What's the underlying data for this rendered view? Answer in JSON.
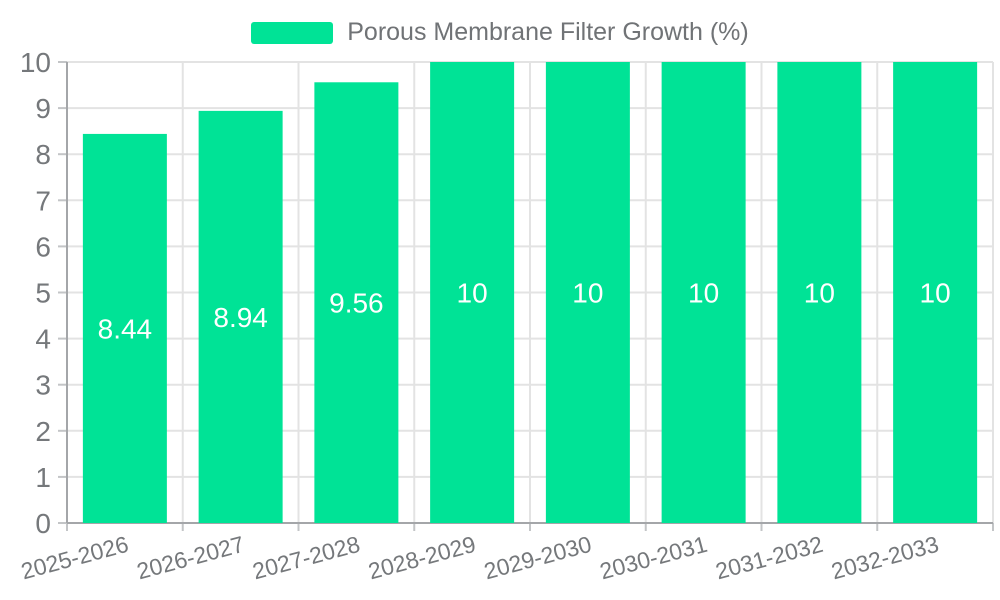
{
  "legend": {
    "label": "Porous Membrane Filter Growth (%)"
  },
  "chart_data": {
    "type": "bar",
    "title": "Porous Membrane Filter Growth (%)",
    "series_name": "Porous Membrane Filter Growth (%)",
    "categories": [
      "2025-2026",
      "2026-2027",
      "2027-2028",
      "2028-2029",
      "2029-2030",
      "2030-2031",
      "2031-2032",
      "2032-2033"
    ],
    "values": [
      8.44,
      8.94,
      9.56,
      10,
      10,
      10,
      10,
      10
    ],
    "data_labels": [
      "8.44",
      "8.94",
      "9.56",
      "10",
      "10",
      "10",
      "10",
      "10"
    ],
    "xlabel": "",
    "ylabel": "",
    "ylim": [
      0,
      10
    ],
    "yticks": [
      0,
      1,
      2,
      3,
      4,
      5,
      6,
      7,
      8,
      9,
      10
    ],
    "grid": true,
    "legend_position": "top",
    "x_label_rotation_deg": -15
  },
  "colors": {
    "bar": "#00E396",
    "grid": "#e3e3e3",
    "axis": "#a4a6a9",
    "tick": "#c3c5c7",
    "axis_label": "#75787b",
    "legend_label": "#707376",
    "data_label": "#ffffff",
    "background": "#ffffff"
  }
}
